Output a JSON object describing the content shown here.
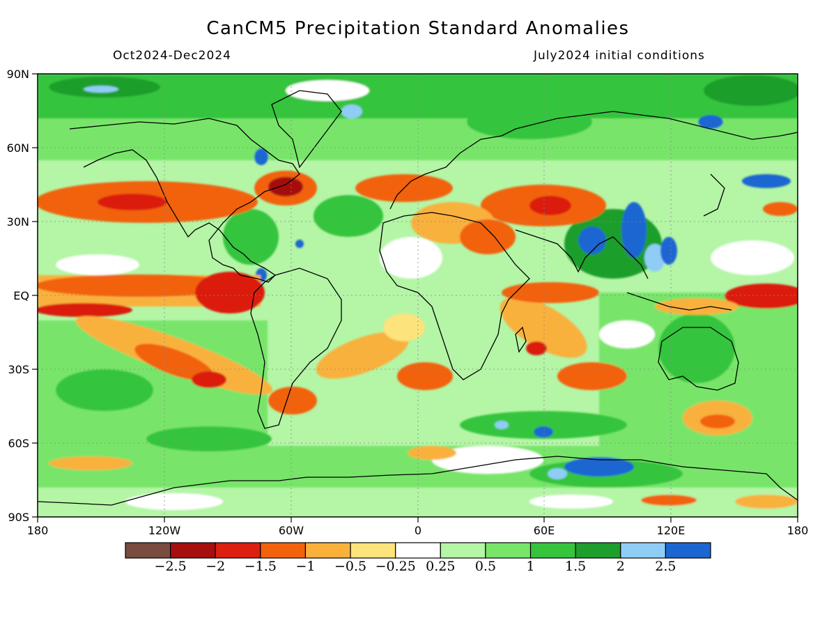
{
  "title": "CanCM5 Precipitation Standard Anomalies",
  "period": "Oct2024-Dec2024",
  "initial_conditions": "July2024 initial conditions",
  "lat_labels": [
    "90N",
    "60N",
    "30N",
    "EQ",
    "30S",
    "60S",
    "90S"
  ],
  "lon_labels": [
    "180",
    "120W",
    "60W",
    "0",
    "60E",
    "120E",
    "180"
  ],
  "colorbar": {
    "colors": [
      "#7a4b3f",
      "#a50f0f",
      "#db1f10",
      "#f2620c",
      "#f9b13c",
      "#fde37b",
      "#ffffff",
      "#b4f5a6",
      "#78e56a",
      "#35c43c",
      "#1e9e2c",
      "#90cdf6",
      "#1b66d1"
    ],
    "labels": [
      "-2.5",
      "-2",
      "-1.5",
      "-1",
      "-0.5",
      "-0.25",
      "0.25",
      "0.5",
      "1",
      "1.5",
      "2",
      "2.5"
    ]
  },
  "legend": {
    "strong_dry": "#a50f0f",
    "dry": "#db1f10",
    "moderate_dry": "#f2620c",
    "weak_dry": "#f9b13c",
    "near_normal": "#ffffff",
    "weak_wet": "#b4f5a6",
    "moderate_wet": "#78e56a",
    "wet": "#35c43c",
    "strong_wet": "#1e9e2c",
    "very_wet": "#90cdf6",
    "extreme_wet": "#1b66d1"
  }
}
